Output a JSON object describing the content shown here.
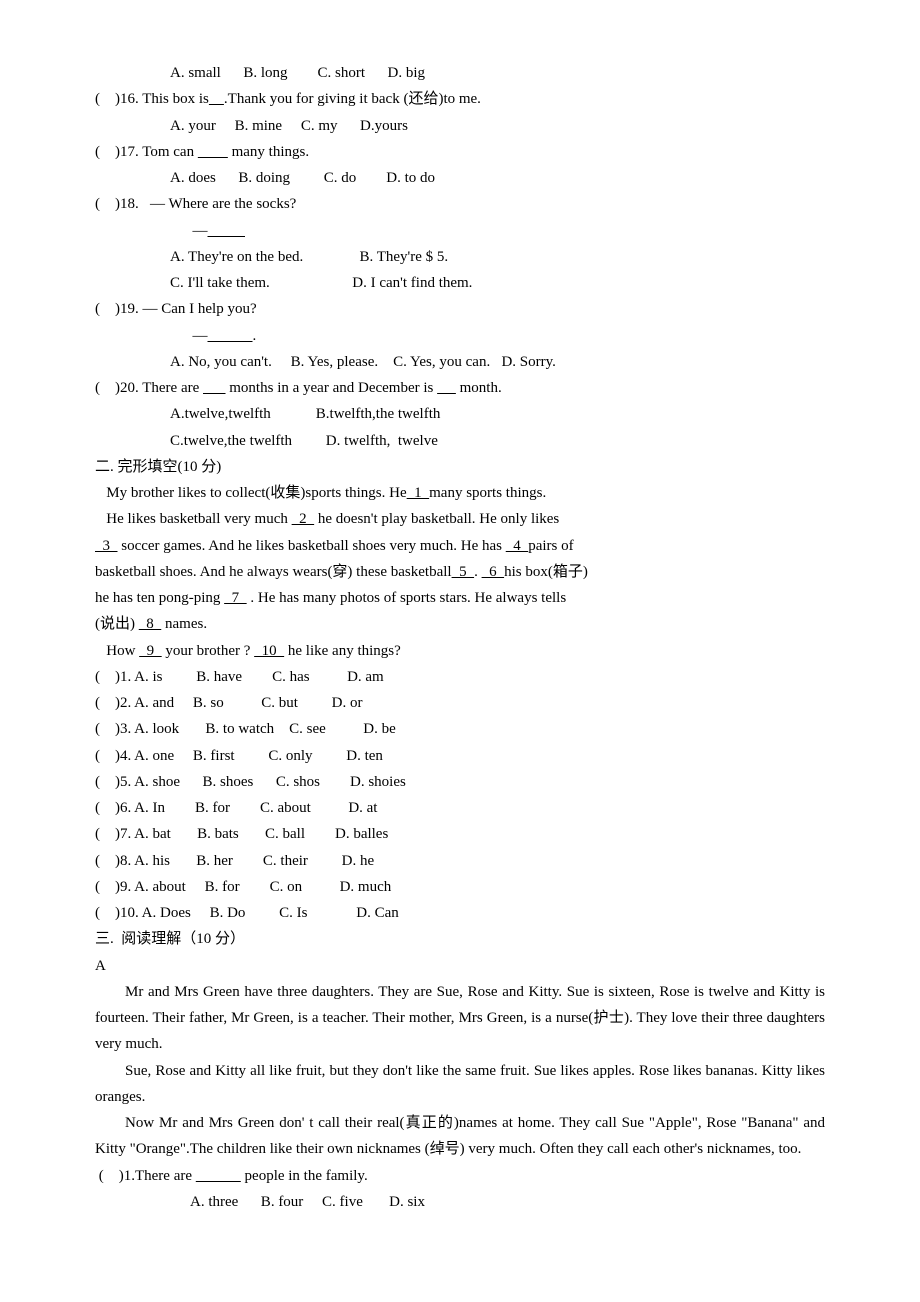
{
  "mcq15opts": "A. small      B. long        C. short      D. big",
  "mcq16": {
    "prefix": "(    )16. This box is",
    "blank": "    ",
    "suffix": ".Thank you for giving it back (还给)to me.",
    "opts": "A. your     B. mine     C. my      D.yours"
  },
  "mcq17": {
    "prefix": "(    )17. Tom can ",
    "blank": "        ",
    "suffix": " many things.",
    "opts": "A. does      B. doing         C. do        D. to do"
  },
  "mcq18": {
    "line1": "(    )18.   — Where are the socks?",
    "line2_pre": "      —",
    "line2_blank": "          ",
    "optA": "A. They're on the bed.",
    "optB": "B. They're $ 5.",
    "optC": "C. I'll take them.",
    "optD": "D. I can't find them."
  },
  "mcq19": {
    "line1": "(    )19. — Can I help you?",
    "line2_pre": "      —",
    "line2_blank": "            ",
    "line2_suf": ".",
    "opts": "A. No, you can't.     B. Yes, please.    C. Yes, you can.   D. Sorry."
  },
  "mcq20": {
    "prefix": "(    )20. There are ",
    "blank1": "      ",
    "mid": " months in a year and December is ",
    "blank2": "     ",
    "suffix": " month.",
    "opts1": "A.twelve,twelfth            B.twelfth,the twelfth",
    "opts2": "C.twelve,the twelfth         D. twelfth,  twelve"
  },
  "cloze": {
    "heading": "二. 完形填空(10 分)",
    "p1a": "My brother likes to collect(收集)sports things. He",
    "b1": "  1  ",
    "p1b": "many sports things.",
    "l2a": "   He likes basketball very much ",
    "b2": "  2  ",
    "l2b": " he doesn't play basketball. He only likes ",
    "b3": "  3  ",
    "l3a": " soccer games. And he likes basketball shoes very much. He has ",
    "b4": "  4  ",
    "l3b": "pairs of",
    "l4a": "basketball shoes. And he always wears(穿) these basketball",
    "b5": "  5  ",
    "l4b": ". ",
    "b6": "  6  ",
    "l4c": "his box(箱子)",
    "l5a": "he has ten pong-ping ",
    "b7": "  7  ",
    "l5b": " . He has many photos of sports stars. He always tells",
    "l6a": "(说出) ",
    "b8": "  8  ",
    "l6b": " names.",
    "l7a": "How ",
    "b9": "  9  ",
    "l7b": " your brother ? ",
    "b10": "  10  ",
    "l7c": " he like any things?",
    "opts": [
      "(    )1. A. is         B. have        C. has          D. am",
      "(    )2. A. and     B. so          C. but         D. or",
      "(    )3. A. look       B. to watch    C. see          D. be",
      "(    )4. A. one     B. first         C. only         D. ten",
      "(    )5. A. shoe      B. shoes      C. shos        D. shoies",
      "(    )6. A. In        B. for        C. about          D. at",
      "(    )7. A. bat       B. bats       C. ball        D. balles",
      "(    )8. A. his       B. her        C. their         D. he",
      "(    )9. A. about     B. for        C. on          D. much",
      "(    )10. A. Does     B. Do         C. Is             D. Can"
    ]
  },
  "reading": {
    "heading": "三.  阅读理解（10 分）",
    "label": "A",
    "p1": "Mr and Mrs Green have three daughters. They are Sue, Rose and Kitty. Sue is sixteen, Rose is twelve and Kitty is fourteen. Their father, Mr Green, is a teacher. Their mother, Mrs Green, is a nurse(护士). They love their three daughters very much.",
    "p2": "Sue, Rose and Kitty all like fruit, but they don't like the same fruit. Sue likes apples. Rose likes bananas. Kitty likes oranges.",
    "p3": "Now Mr and Mrs Green don' t call their real(真正的)names at home. They call Sue \"Apple\",  Rose \"Banana\"  and Kitty \"Orange\".The children like their own nicknames (绰号) very much. Often they call each other's nicknames, too.",
    "q1_pre": " (    )1.There are ",
    "q1_blank": "            ",
    "q1_suf": " people in the family.",
    "q1_opts": "A. three      B. four     C. five       D. six"
  }
}
